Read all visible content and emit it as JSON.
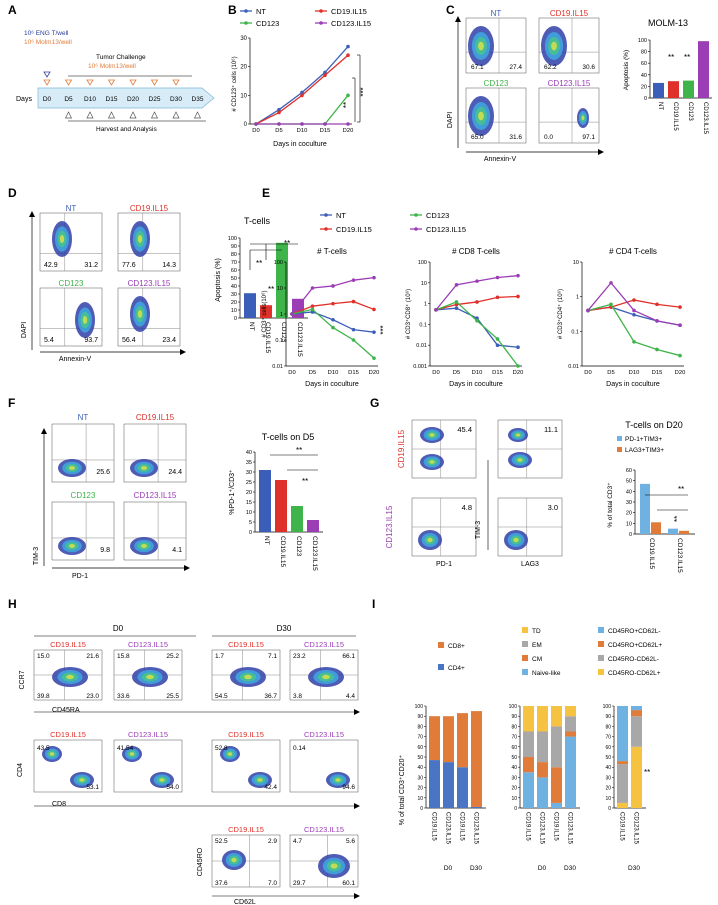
{
  "colors": {
    "nt": "#3b5fb8",
    "cd19": "#e0302a",
    "cd123": "#3fb44a",
    "cd123il15": "#9b3db5",
    "blue_bar": "#4a74c4",
    "orange_bar": "#e07b3a",
    "grey_bar": "#a8a8a8",
    "yellow_bar": "#f5c242",
    "light_blue": "#6fb1e0"
  },
  "panel_letters": [
    "A",
    "B",
    "C",
    "D",
    "E",
    "F",
    "G",
    "H",
    "I"
  ],
  "panel_a": {
    "t_cells": "10⁶ ENG T/well",
    "molm": "10⁶ Molm13/well",
    "challenge": "Tumor Challenge",
    "challenge_molm": "10⁶ Molm13/well",
    "days_label": "Days",
    "timepoints": [
      "D0",
      "D5",
      "D10",
      "D15",
      "D20",
      "D25",
      "D30",
      "D35"
    ],
    "harvest": "Harvest and Analysis"
  },
  "panel_b": {
    "legend": [
      "NT",
      "CD19.IL15",
      "CD123",
      "CD123.IL15"
    ],
    "ylabel": "# CD123⁺ cells (10⁶)",
    "xlabel": "Days in coculture",
    "sig1": "***",
    "sig2": "**"
  },
  "panel_c": {
    "pop_labels": [
      "NT",
      "CD19.IL15",
      "CD123",
      "CD123.IL15"
    ],
    "quadrant_values": [
      [
        "67.1",
        "27.4"
      ],
      [
        "62.2",
        "30.6"
      ],
      [
        "65.0",
        "31.6"
      ],
      [
        "0.0",
        "97.1"
      ]
    ],
    "ylabel": "DAPI",
    "xlabel": "Annexin-V",
    "bar_title": "MOLM-13",
    "bar_ylabel": "Apoptosis (%)",
    "sig": [
      "**",
      "**"
    ],
    "tick_y": [
      "10²",
      "10³",
      "10⁴",
      "10⁵"
    ],
    "tick_x": "10⁰ 10¹ 10² 10³ 10⁴ 10⁵"
  },
  "panel_d": {
    "pop_labels": [
      "NT",
      "CD19.IL15",
      "CD123",
      "CD123.IL15"
    ],
    "quadrant_values": [
      [
        "42.9",
        "31.2"
      ],
      [
        "77.6",
        "14.3"
      ],
      [
        "5.4",
        "93.7"
      ],
      [
        "56.4",
        "23.4"
      ]
    ],
    "ylabel": "DAPI",
    "xlabel": "Annexin-V",
    "bar_title": "T-cells",
    "bar_ylabel": "Apoptosis (%)",
    "sig": [
      "**",
      "**",
      "**"
    ]
  },
  "panel_e": {
    "legend": [
      "NT",
      "CD123",
      "CD19.IL15",
      "CD123.IL15"
    ],
    "titles": [
      "# T-cells",
      "# CD8 T-cells",
      "# CD4 T-cells"
    ],
    "ylabels": [
      "# CD3⁺ cells(10⁶)",
      "# CD3⁺CD8⁺ (10⁶)",
      "# CD3⁺CD4⁺ (10⁶)"
    ],
    "xlabel": "Days in coculture",
    "sig": "***"
  },
  "panel_f": {
    "pop_labels": [
      "NT",
      "CD19.IL15",
      "CD123",
      "CD123.IL15"
    ],
    "quadrant_values": [
      "25.6",
      "24.4",
      "9.8",
      "4.1"
    ],
    "ylabel": "TIM-3",
    "xlabel": "PD-1",
    "bar_title": "T-cells on D5",
    "bar_ylabel": "%PD-1⁺/CD3⁺",
    "sig": [
      "**",
      "**"
    ]
  },
  "panel_g": {
    "row_labels": [
      "CD19.IL15",
      "CD123.IL15"
    ],
    "quadrant_values": [
      "45.4",
      "11.1",
      "4.8",
      "3.0"
    ],
    "xlabels": [
      "PD-1",
      "LAG3"
    ],
    "ylabel": "TIM-3",
    "bar_title": "T-cells on D20",
    "legend": [
      "PD-1+TIM3+",
      "LAG3+TIM3+"
    ],
    "bar_ylabel": "% of total CD3⁺",
    "sig": [
      "**",
      "**"
    ]
  },
  "panel_h": {
    "day_labels": [
      "D0",
      "D30"
    ],
    "group_labels": [
      "CD19.IL15",
      "CD123.IL15",
      "CD19.IL15",
      "CD123.IL15"
    ],
    "row1": {
      "ylabel": "CCR7",
      "xlabel": "CD45RA",
      "values": [
        [
          "15.0",
          "21.6",
          "39.8",
          "23.0"
        ],
        [
          "15.8",
          "25.2",
          "33.6",
          "25.5"
        ],
        [
          "1.7",
          "7.1",
          "54.5",
          "36.7"
        ],
        [
          "23.2",
          "66.1",
          "3.8",
          "4.4"
        ]
      ]
    },
    "row2": {
      "ylabel": "CD4",
      "xlabel": "CD8",
      "values": [
        [
          "43.5",
          "53.1"
        ],
        [
          "41.54",
          "54.0"
        ],
        [
          "52.8",
          "42.4"
        ],
        [
          "0.14",
          "94.6"
        ]
      ]
    },
    "row3": {
      "ylabel": "CD45RO",
      "xlabel": "CD62L",
      "values": [
        [
          "52.5",
          "2.9",
          "37.6",
          "7.0"
        ],
        [
          "4.7",
          "5.6",
          "29.7",
          "60.1"
        ]
      ]
    }
  },
  "panel_i": {
    "ylabel": "% of total CD3⁺CD20⁺",
    "legend1": [
      "CD8+",
      "CD4+"
    ],
    "legend2": [
      "TD",
      "EM",
      "CM",
      "Naive-like"
    ],
    "legend3": [
      "CD45RO+CD62L-",
      "CD45RO+CD62L+",
      "CD45RO-CD62L-",
      "CD45RO-CD62L+"
    ],
    "xlabels": [
      "CD19.IL15",
      "CD123.IL15",
      "CD19.IL15",
      "CD123.IL15"
    ],
    "xlabels3": [
      "CD19.IL15",
      "CD123.IL15"
    ],
    "day_labels": [
      "D0",
      "D30"
    ],
    "day3": "D30",
    "sig": "**"
  },
  "chart_data": [
    {
      "type": "line",
      "panel": "B",
      "x": [
        "D0",
        "D5",
        "D10",
        "D15",
        "D20"
      ],
      "ylim": [
        0,
        30
      ],
      "series": [
        {
          "name": "NT",
          "values": [
            0,
            5,
            11,
            18,
            27
          ]
        },
        {
          "name": "CD19.IL15",
          "values": [
            0,
            4,
            10,
            17,
            24
          ]
        },
        {
          "name": "CD123",
          "values": [
            0,
            0,
            0,
            0,
            10
          ]
        },
        {
          "name": "CD123.IL15",
          "values": [
            0,
            0,
            0,
            0,
            0
          ]
        }
      ]
    },
    {
      "type": "bar",
      "panel": "C",
      "title": "MOLM-13",
      "categories": [
        "NT",
        "CD19.IL15",
        "CD123",
        "CD123.IL15"
      ],
      "values": [
        26,
        29,
        30,
        98
      ],
      "ylim": [
        0,
        100
      ]
    },
    {
      "type": "bar",
      "panel": "D",
      "title": "T-cells",
      "categories": [
        "NT",
        "CD19.IL15",
        "CD123",
        "CD123.IL15"
      ],
      "values": [
        31,
        16,
        94,
        24
      ],
      "ylim": [
        0,
        100
      ]
    },
    {
      "type": "line",
      "panel": "E1",
      "title": "# T-cells",
      "x": [
        "D0",
        "D5",
        "D10",
        "D15",
        "D20"
      ],
      "ylog": [
        0.01,
        100
      ],
      "series": [
        {
          "name": "NT",
          "values": [
            1,
            1.2,
            0.6,
            0.25,
            0.2
          ]
        },
        {
          "name": "CD19.IL15",
          "values": [
            1,
            2,
            2.5,
            3,
            1.5
          ]
        },
        {
          "name": "CD123",
          "values": [
            1,
            1.5,
            0.3,
            0.1,
            0.02
          ]
        },
        {
          "name": "CD123.IL15",
          "values": [
            1,
            10,
            12,
            20,
            25
          ]
        }
      ]
    },
    {
      "type": "line",
      "panel": "E2",
      "title": "# CD8 T-cells",
      "x": [
        "D0",
        "D5",
        "D10",
        "D15",
        "D20"
      ],
      "ylog": [
        0.001,
        100
      ],
      "series": [
        {
          "name": "NT",
          "values": [
            0.5,
            0.6,
            0.2,
            0.01,
            0.008
          ]
        },
        {
          "name": "CD19.IL15",
          "values": [
            0.5,
            0.9,
            1.2,
            2,
            2.2
          ]
        },
        {
          "name": "CD123",
          "values": [
            0.5,
            1.2,
            0.15,
            0.02,
            0.001
          ]
        },
        {
          "name": "CD123.IL15",
          "values": [
            0.5,
            8,
            12,
            18,
            22
          ]
        }
      ]
    },
    {
      "type": "line",
      "panel": "E3",
      "title": "# CD4 T-cells",
      "x": [
        "D0",
        "D5",
        "D10",
        "D15",
        "D20"
      ],
      "ylog": [
        0.01,
        10
      ],
      "series": [
        {
          "name": "NT",
          "values": [
            0.4,
            0.5,
            0.3,
            0.2,
            0.15
          ]
        },
        {
          "name": "CD19.IL15",
          "values": [
            0.4,
            0.5,
            0.8,
            0.6,
            0.5
          ]
        },
        {
          "name": "CD123",
          "values": [
            0.4,
            0.6,
            0.05,
            0.03,
            0.02
          ]
        },
        {
          "name": "CD123.IL15",
          "values": [
            0.4,
            2.5,
            0.4,
            0.2,
            0.15
          ]
        }
      ]
    },
    {
      "type": "bar",
      "panel": "F",
      "title": "T-cells on D5",
      "categories": [
        "NT",
        "CD19.IL15",
        "CD123",
        "CD123.IL15"
      ],
      "values": [
        31,
        26,
        13,
        6
      ],
      "ylim": [
        0,
        40
      ]
    },
    {
      "type": "bar",
      "panel": "G",
      "title": "T-cells on D20",
      "categories": [
        "CD19.IL15",
        "CD123.IL15"
      ],
      "series": [
        {
          "name": "PD-1+TIM3+",
          "values": [
            47,
            5
          ]
        },
        {
          "name": "LAG3+TIM3+",
          "values": [
            11,
            3
          ]
        }
      ],
      "ylim": [
        0,
        60
      ]
    },
    {
      "type": "bar",
      "panel": "I1",
      "stacked": true,
      "categories": [
        "CD19.IL15 D0",
        "CD123.IL15 D0",
        "CD19.IL15 D30",
        "CD123.IL15 D30"
      ],
      "series": [
        {
          "name": "CD4+",
          "values": [
            47,
            45,
            40,
            1
          ]
        },
        {
          "name": "CD8+",
          "values": [
            43,
            45,
            53,
            94
          ]
        }
      ]
    },
    {
      "type": "bar",
      "panel": "I2",
      "stacked": true,
      "categories": [
        "CD19.IL15 D0",
        "CD123.IL15 D0",
        "CD19.IL15 D30",
        "CD123.IL15 D30"
      ],
      "series": [
        {
          "name": "Naive-like",
          "values": [
            35,
            30,
            5,
            70
          ]
        },
        {
          "name": "CM",
          "values": [
            15,
            15,
            35,
            5
          ]
        },
        {
          "name": "EM",
          "values": [
            25,
            30,
            40,
            15
          ]
        },
        {
          "name": "TD",
          "values": [
            25,
            25,
            20,
            10
          ]
        }
      ]
    },
    {
      "type": "bar",
      "panel": "I3",
      "stacked": true,
      "categories": [
        "CD19.IL15",
        "CD123.IL15"
      ],
      "series": [
        {
          "name": "CD45RO-CD62L+",
          "values": [
            5,
            60
          ]
        },
        {
          "name": "CD45RO-CD62L-",
          "values": [
            38,
            30
          ]
        },
        {
          "name": "CD45RO+CD62L+",
          "values": [
            3,
            6
          ]
        },
        {
          "name": "CD45RO+CD62L-",
          "values": [
            54,
            4
          ]
        }
      ]
    }
  ]
}
